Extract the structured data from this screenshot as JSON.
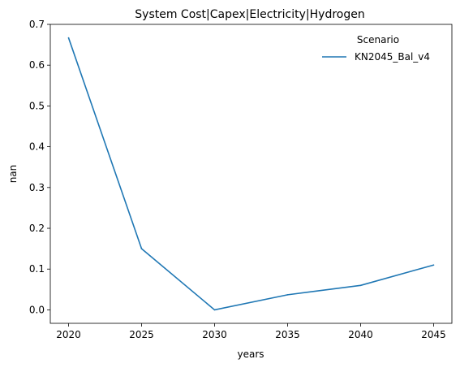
{
  "chart_data": {
    "type": "line",
    "title": "System Cost|Capex|Electricity|Hydrogen",
    "xlabel": "years",
    "ylabel": "nan",
    "x": [
      2020,
      2025,
      2030,
      2035,
      2040,
      2045
    ],
    "xticks": [
      "2020",
      "2025",
      "2030",
      "2035",
      "2040",
      "2045"
    ],
    "yticks": [
      "0.0",
      "0.1",
      "0.2",
      "0.3",
      "0.4",
      "0.5",
      "0.6",
      "0.7"
    ],
    "xlim": [
      2018.75,
      2046.25
    ],
    "ylim": [
      -0.033,
      0.7
    ],
    "grid": false,
    "legend": {
      "title": "Scenario",
      "placement": "top-right"
    },
    "series": [
      {
        "name": "KN2045_Bal_v4",
        "color": "#1f77b4",
        "values": [
          0.667,
          0.15,
          0.0,
          0.037,
          0.06,
          0.11
        ]
      }
    ]
  }
}
